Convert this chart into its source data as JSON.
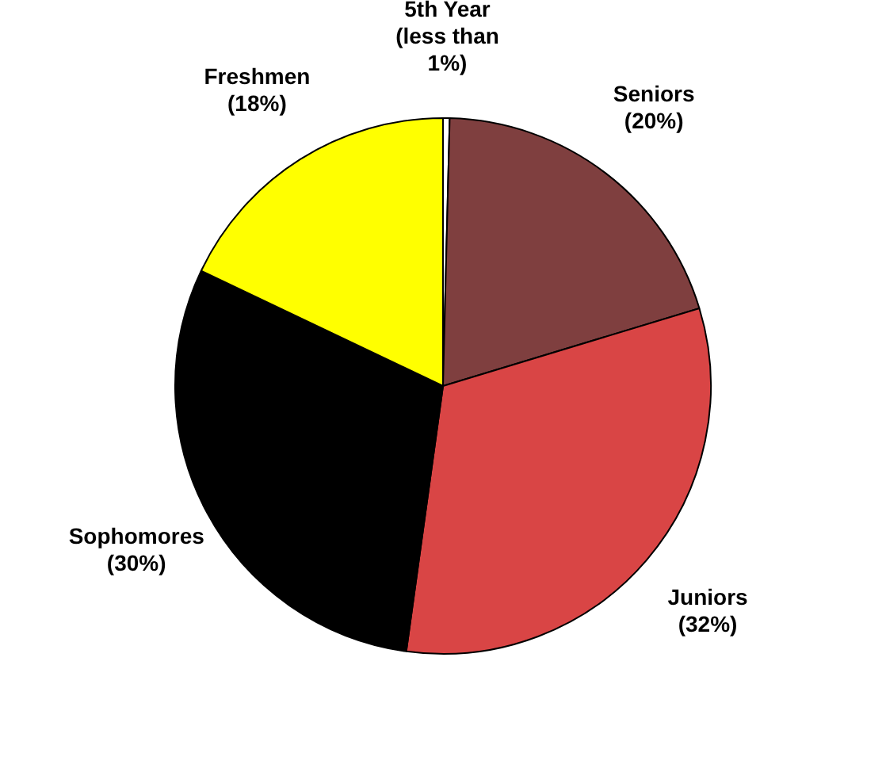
{
  "chart_data": {
    "type": "pie",
    "categories": [
      "5th Year",
      "Seniors",
      "Juniors",
      "Sophomores",
      "Freshmen"
    ],
    "values": [
      0.4,
      20,
      32,
      30,
      18
    ],
    "value_labels": [
      "(less than 1%)",
      "(20%)",
      "(32%)",
      "(30%)",
      "(18%)"
    ],
    "colors": [
      "#ffffff",
      "#7f3f3f",
      "#d94545",
      "#000000",
      "#ffff00"
    ],
    "legend": false
  }
}
